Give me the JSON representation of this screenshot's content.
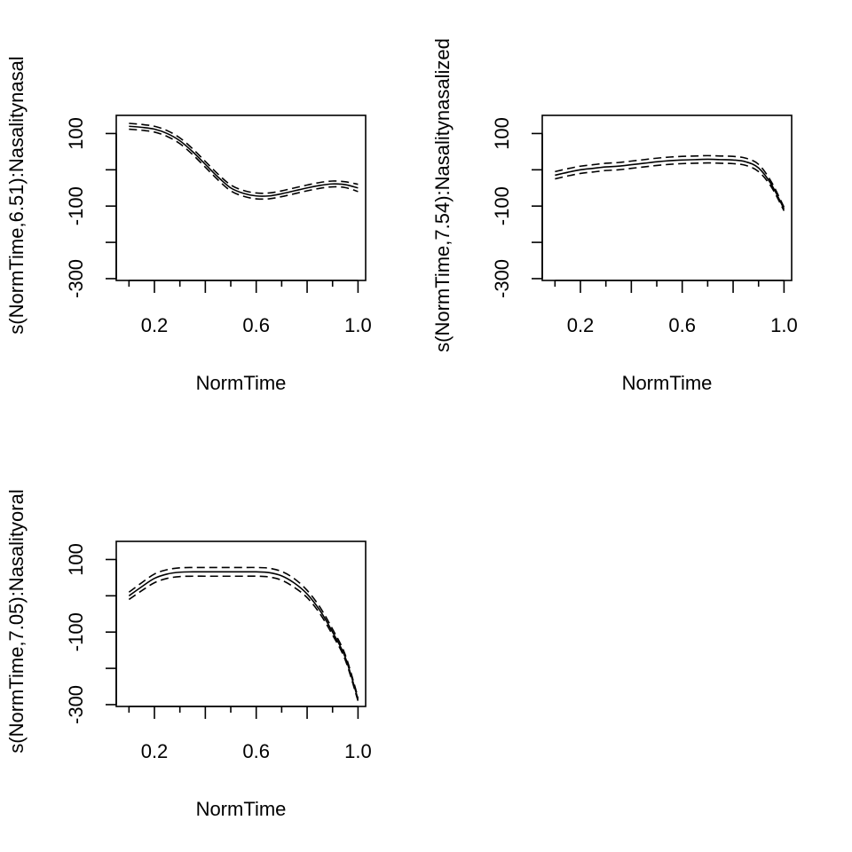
{
  "chart_data": [
    {
      "type": "line",
      "xlabel": "NormTime",
      "ylabel": "s(NormTime,6.51):Nasalitynasal",
      "xlim": [
        0.05,
        1.03
      ],
      "ylim": [
        -305,
        150
      ],
      "x_major_ticks": [
        0.2,
        0.4,
        0.6,
        0.8,
        1.0
      ],
      "x_tick_labels": [
        "0.2",
        "",
        "0.6",
        "",
        "1.0"
      ],
      "x_minor_ticks": [
        0.1,
        0.3,
        0.5,
        0.7,
        0.9
      ],
      "y_ticks": [
        -300,
        -200,
        -100,
        0,
        100
      ],
      "y_tick_labels": [
        "-300",
        "",
        "-100",
        "",
        "100"
      ],
      "x": [
        0.1,
        0.15,
        0.2,
        0.25,
        0.3,
        0.35,
        0.4,
        0.45,
        0.5,
        0.55,
        0.6,
        0.65,
        0.7,
        0.75,
        0.8,
        0.85,
        0.9,
        0.95,
        1.0
      ],
      "series": [
        {
          "role": "fit",
          "values": [
            120,
            117,
            112,
            100,
            80,
            50,
            15,
            -20,
            -50,
            -65,
            -72,
            -72,
            -66,
            -58,
            -50,
            -43,
            -39,
            -41,
            -50
          ]
        },
        {
          "role": "upper",
          "values": [
            128,
            125,
            120,
            108,
            88,
            58,
            23,
            -12,
            -42,
            -57,
            -64,
            -64,
            -58,
            -50,
            -42,
            -35,
            -31,
            -33,
            -40
          ]
        },
        {
          "role": "lower",
          "values": [
            112,
            109,
            104,
            92,
            72,
            42,
            7,
            -28,
            -58,
            -73,
            -80,
            -80,
            -74,
            -66,
            -58,
            -51,
            -47,
            -49,
            -60
          ]
        }
      ]
    },
    {
      "type": "line",
      "xlabel": "NormTime",
      "ylabel": "s(NormTime,7.54):Nasalitynasalized",
      "xlim": [
        0.05,
        1.03
      ],
      "ylim": [
        -305,
        150
      ],
      "x_major_ticks": [
        0.2,
        0.4,
        0.6,
        0.8,
        1.0
      ],
      "x_tick_labels": [
        "0.2",
        "",
        "0.6",
        "",
        "1.0"
      ],
      "x_minor_ticks": [
        0.1,
        0.3,
        0.5,
        0.7,
        0.9
      ],
      "y_ticks": [
        -300,
        -200,
        -100,
        0,
        100
      ],
      "y_tick_labels": [
        "-300",
        "",
        "-100",
        "",
        "100"
      ],
      "x": [
        0.1,
        0.15,
        0.2,
        0.25,
        0.3,
        0.35,
        0.4,
        0.45,
        0.5,
        0.55,
        0.6,
        0.65,
        0.7,
        0.75,
        0.8,
        0.85,
        0.9,
        0.95,
        1.0
      ],
      "series": [
        {
          "role": "fit",
          "values": [
            -15,
            -7,
            0,
            4,
            8,
            10,
            14,
            18,
            22,
            25,
            27,
            28,
            29,
            28,
            27,
            22,
            5,
            -40,
            -108
          ]
        },
        {
          "role": "upper",
          "values": [
            -5,
            3,
            10,
            14,
            18,
            20,
            24,
            28,
            32,
            35,
            37,
            38,
            39,
            38,
            37,
            32,
            15,
            -33,
            -103
          ]
        },
        {
          "role": "lower",
          "values": [
            -25,
            -17,
            -10,
            -6,
            -2,
            0,
            4,
            8,
            12,
            15,
            17,
            18,
            19,
            18,
            17,
            12,
            -5,
            -47,
            -113
          ]
        }
      ]
    },
    {
      "type": "line",
      "xlabel": "NormTime",
      "ylabel": "s(NormTime,7.05):Nasalityoral",
      "xlim": [
        0.05,
        1.03
      ],
      "ylim": [
        -305,
        150
      ],
      "x_major_ticks": [
        0.2,
        0.4,
        0.6,
        0.8,
        1.0
      ],
      "x_tick_labels": [
        "0.2",
        "",
        "0.6",
        "",
        "1.0"
      ],
      "x_minor_ticks": [
        0.1,
        0.3,
        0.5,
        0.7,
        0.9
      ],
      "y_ticks": [
        -300,
        -200,
        -100,
        0,
        100
      ],
      "y_tick_labels": [
        "-300",
        "",
        "-100",
        "",
        "100"
      ],
      "x": [
        0.1,
        0.15,
        0.2,
        0.25,
        0.3,
        0.35,
        0.4,
        0.45,
        0.5,
        0.55,
        0.6,
        0.65,
        0.7,
        0.75,
        0.8,
        0.85,
        0.9,
        0.95,
        1.0
      ],
      "series": [
        {
          "role": "fit",
          "values": [
            0,
            25,
            48,
            60,
            65,
            66,
            66,
            66,
            66,
            66,
            66,
            64,
            55,
            35,
            5,
            -40,
            -100,
            -170,
            -285
          ]
        },
        {
          "role": "upper",
          "values": [
            10,
            36,
            60,
            72,
            77,
            78,
            78,
            78,
            78,
            78,
            78,
            76,
            67,
            47,
            15,
            -31,
            -92,
            -163,
            -280
          ]
        },
        {
          "role": "lower",
          "values": [
            -10,
            14,
            36,
            48,
            53,
            54,
            54,
            54,
            54,
            54,
            54,
            52,
            43,
            23,
            -5,
            -49,
            -108,
            -177,
            -290
          ]
        }
      ]
    }
  ]
}
